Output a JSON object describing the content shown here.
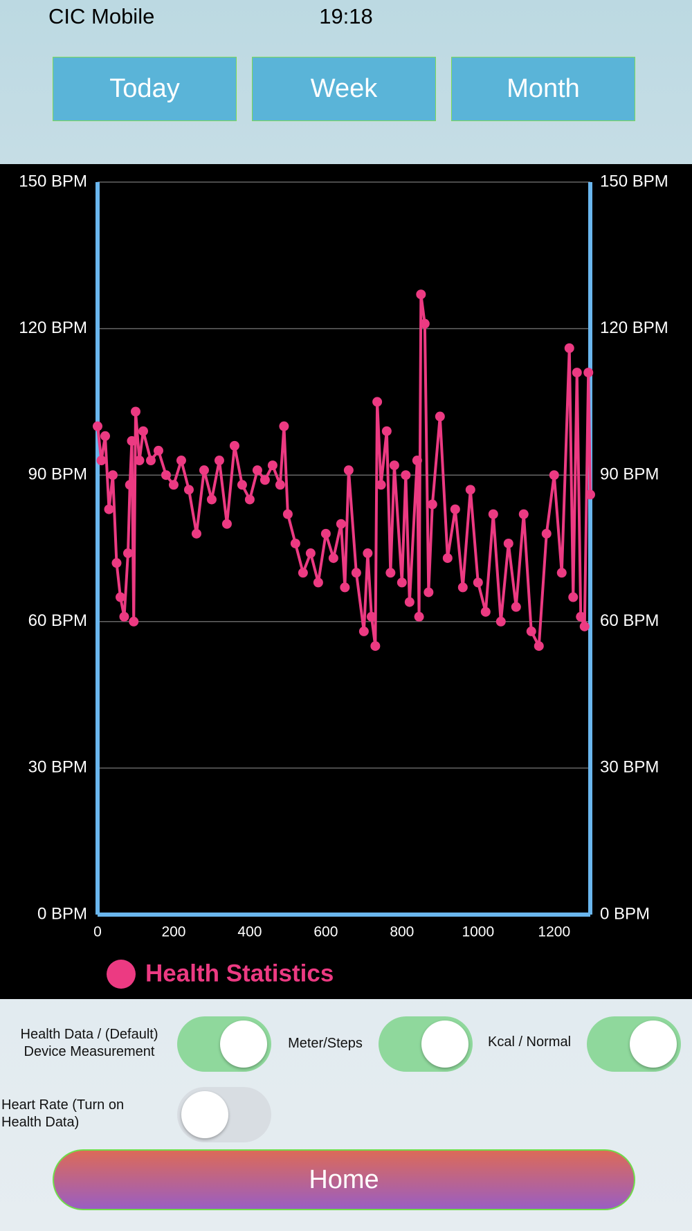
{
  "status_bar": {
    "carrier": "CIC Mobile",
    "time": "19:18"
  },
  "tabs": [
    "Today",
    "Week",
    "Month"
  ],
  "chart_data": {
    "type": "line",
    "x": [
      0,
      10,
      20,
      30,
      40,
      50,
      60,
      70,
      80,
      85,
      90,
      95,
      100,
      110,
      120,
      140,
      160,
      180,
      200,
      220,
      240,
      260,
      280,
      300,
      320,
      340,
      360,
      380,
      400,
      420,
      440,
      460,
      480,
      490,
      500,
      520,
      540,
      560,
      580,
      600,
      620,
      640,
      650,
      660,
      680,
      700,
      710,
      720,
      730,
      735,
      745,
      760,
      770,
      780,
      800,
      810,
      820,
      840,
      845,
      850,
      860,
      870,
      880,
      900,
      920,
      940,
      960,
      980,
      1000,
      1020,
      1040,
      1060,
      1080,
      1100,
      1120,
      1140,
      1160,
      1180,
      1200,
      1220,
      1240,
      1250,
      1260,
      1270,
      1280,
      1290,
      1295
    ],
    "series": [
      {
        "name": "Health Statistics",
        "color": "#ec3a82",
        "values": [
          100,
          93,
          98,
          83,
          90,
          72,
          65,
          61,
          74,
          88,
          97,
          60,
          103,
          93,
          99,
          93,
          95,
          90,
          88,
          93,
          87,
          78,
          91,
          85,
          93,
          80,
          96,
          88,
          85,
          91,
          89,
          92,
          88,
          100,
          82,
          76,
          70,
          74,
          68,
          78,
          73,
          80,
          67,
          91,
          70,
          58,
          74,
          61,
          55,
          105,
          88,
          99,
          70,
          92,
          68,
          90,
          64,
          93,
          61,
          127,
          121,
          66,
          84,
          102,
          73,
          83,
          67,
          87,
          68,
          62,
          82,
          60,
          76,
          63,
          82,
          58,
          55,
          78,
          90,
          70,
          116,
          65,
          111,
          61,
          59,
          111,
          86
        ]
      }
    ],
    "xlim": [
      0,
      1295
    ],
    "xticks": [
      0,
      200,
      400,
      600,
      800,
      1000,
      1200
    ],
    "ylim": [
      0,
      150
    ],
    "yticks": [
      {
        "value": 0,
        "label": "0 BPM"
      },
      {
        "value": 30,
        "label": "30 BPM"
      },
      {
        "value": 60,
        "label": "60 BPM"
      },
      {
        "value": 90,
        "label": "90 BPM"
      },
      {
        "value": 120,
        "label": "120 BPM"
      },
      {
        "value": 150,
        "label": "150 BPM"
      }
    ],
    "y2lim": [
      0,
      150
    ],
    "y2ticks": [
      {
        "value": 0,
        "label": "0 BPM"
      },
      {
        "value": 30,
        "label": "30 BPM"
      },
      {
        "value": 60,
        "label": "60 BPM"
      },
      {
        "value": 90,
        "label": "90 BPM"
      },
      {
        "value": 120,
        "label": "120 BPM"
      },
      {
        "value": 150,
        "label": "150 BPM"
      }
    ],
    "grid": true
  },
  "settings": [
    {
      "label": "Health Data / (Default) Device Measurement",
      "on": true
    },
    {
      "label": "Meter/Steps",
      "on": true
    },
    {
      "label": "Kcal / Normal",
      "on": true
    },
    {
      "label": "Heart Rate (Turn on Health Data)",
      "on": false
    }
  ],
  "home_button": "Home"
}
